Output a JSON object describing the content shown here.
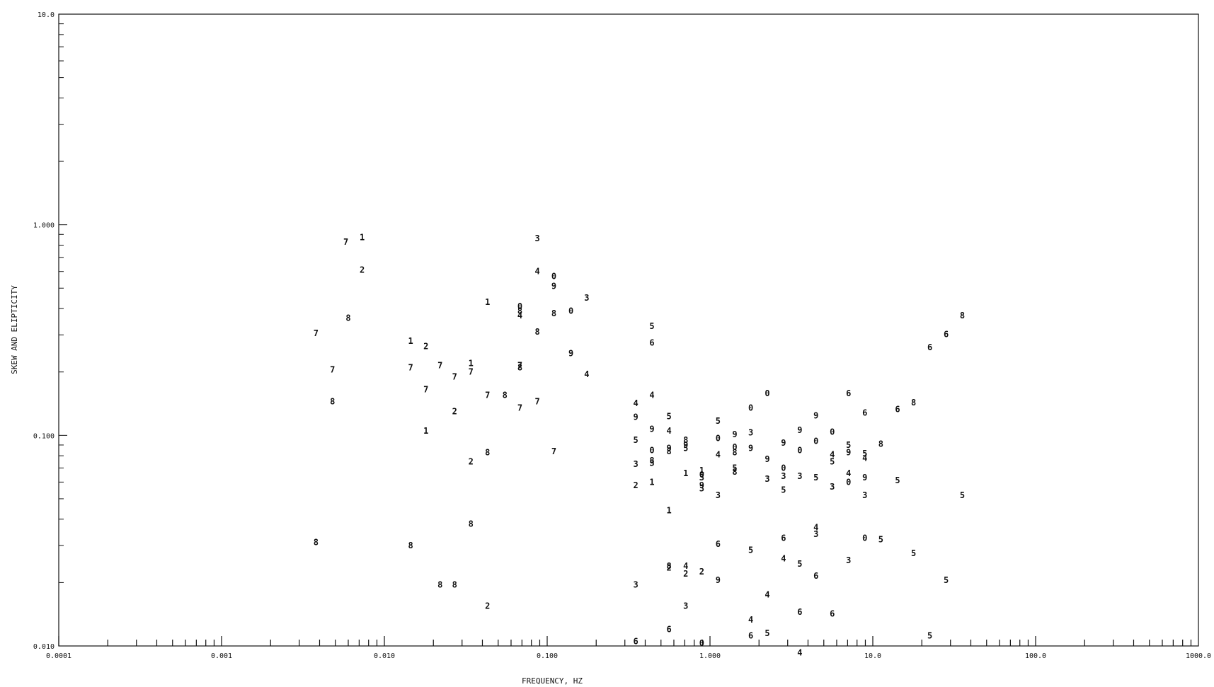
{
  "chart_data": {
    "type": "scatter",
    "title": "",
    "xlabel": "FREQUENCY, HZ",
    "ylabel": "SKEW AND ELIPTICITY",
    "x_scale": "log",
    "y_scale": "log",
    "xlim": [
      0.0001,
      1000.0
    ],
    "ylim": [
      0.01,
      10.0
    ],
    "x_tick_labels": [
      "0.0001",
      "0.001",
      "0.010",
      "0.100",
      "1.000",
      "10.0",
      "100.0",
      "1000.0"
    ],
    "y_tick_labels": [
      "0.010",
      "0.100",
      "1.000",
      "10.0"
    ],
    "grid": false,
    "legend": "none",
    "marker_style": "digit labels 0-9",
    "color": "#111111",
    "points": [
      {
        "x": 0.0038,
        "y": 0.305,
        "label": "7"
      },
      {
        "x": 0.0048,
        "y": 0.205,
        "label": "7"
      },
      {
        "x": 0.0058,
        "y": 0.83,
        "label": "7"
      },
      {
        "x": 0.0073,
        "y": 0.87,
        "label": "1"
      },
      {
        "x": 0.0073,
        "y": 0.61,
        "label": "2"
      },
      {
        "x": 0.006,
        "y": 0.36,
        "label": "8"
      },
      {
        "x": 0.0048,
        "y": 0.145,
        "label": "8"
      },
      {
        "x": 0.0038,
        "y": 0.031,
        "label": "8"
      },
      {
        "x": 0.0145,
        "y": 0.28,
        "label": "1"
      },
      {
        "x": 0.0145,
        "y": 0.21,
        "label": "7"
      },
      {
        "x": 0.018,
        "y": 0.265,
        "label": "2"
      },
      {
        "x": 0.022,
        "y": 0.215,
        "label": "7"
      },
      {
        "x": 0.018,
        "y": 0.165,
        "label": "7"
      },
      {
        "x": 0.018,
        "y": 0.105,
        "label": "1"
      },
      {
        "x": 0.027,
        "y": 0.19,
        "label": "7"
      },
      {
        "x": 0.027,
        "y": 0.13,
        "label": "2"
      },
      {
        "x": 0.034,
        "y": 0.22,
        "label": "1"
      },
      {
        "x": 0.034,
        "y": 0.2,
        "label": "7"
      },
      {
        "x": 0.034,
        "y": 0.075,
        "label": "2"
      },
      {
        "x": 0.034,
        "y": 0.038,
        "label": "8"
      },
      {
        "x": 0.0145,
        "y": 0.03,
        "label": "8"
      },
      {
        "x": 0.022,
        "y": 0.0195,
        "label": "8"
      },
      {
        "x": 0.027,
        "y": 0.0195,
        "label": "8"
      },
      {
        "x": 0.043,
        "y": 0.0155,
        "label": "2"
      },
      {
        "x": 0.043,
        "y": 0.155,
        "label": "7"
      },
      {
        "x": 0.043,
        "y": 0.083,
        "label": "8"
      },
      {
        "x": 0.043,
        "y": 0.43,
        "label": "1"
      },
      {
        "x": 0.055,
        "y": 0.155,
        "label": "8"
      },
      {
        "x": 0.068,
        "y": 0.41,
        "label": "0"
      },
      {
        "x": 0.068,
        "y": 0.39,
        "label": "8"
      },
      {
        "x": 0.068,
        "y": 0.37,
        "label": "4"
      },
      {
        "x": 0.068,
        "y": 0.215,
        "label": "7"
      },
      {
        "x": 0.068,
        "y": 0.21,
        "label": "8"
      },
      {
        "x": 0.068,
        "y": 0.135,
        "label": "7"
      },
      {
        "x": 0.087,
        "y": 0.86,
        "label": "3"
      },
      {
        "x": 0.087,
        "y": 0.6,
        "label": "4"
      },
      {
        "x": 0.087,
        "y": 0.31,
        "label": "8"
      },
      {
        "x": 0.087,
        "y": 0.145,
        "label": "7"
      },
      {
        "x": 0.11,
        "y": 0.57,
        "label": "0"
      },
      {
        "x": 0.11,
        "y": 0.51,
        "label": "9"
      },
      {
        "x": 0.11,
        "y": 0.38,
        "label": "8"
      },
      {
        "x": 0.11,
        "y": 0.084,
        "label": "7"
      },
      {
        "x": 0.14,
        "y": 0.39,
        "label": "0"
      },
      {
        "x": 0.14,
        "y": 0.245,
        "label": "9"
      },
      {
        "x": 0.175,
        "y": 0.45,
        "label": "3"
      },
      {
        "x": 0.175,
        "y": 0.195,
        "label": "4"
      },
      {
        "x": 0.35,
        "y": 0.142,
        "label": "4"
      },
      {
        "x": 0.35,
        "y": 0.122,
        "label": "9"
      },
      {
        "x": 0.35,
        "y": 0.095,
        "label": "5"
      },
      {
        "x": 0.35,
        "y": 0.073,
        "label": "3"
      },
      {
        "x": 0.35,
        "y": 0.058,
        "label": "2"
      },
      {
        "x": 0.35,
        "y": 0.0195,
        "label": "3"
      },
      {
        "x": 0.35,
        "y": 0.0105,
        "label": "6"
      },
      {
        "x": 0.44,
        "y": 0.33,
        "label": "5"
      },
      {
        "x": 0.44,
        "y": 0.275,
        "label": "6"
      },
      {
        "x": 0.44,
        "y": 0.155,
        "label": "4"
      },
      {
        "x": 0.44,
        "y": 0.107,
        "label": "9"
      },
      {
        "x": 0.44,
        "y": 0.085,
        "label": "0"
      },
      {
        "x": 0.44,
        "y": 0.076,
        "label": "8"
      },
      {
        "x": 0.44,
        "y": 0.074,
        "label": "3"
      },
      {
        "x": 0.44,
        "y": 0.06,
        "label": "1"
      },
      {
        "x": 0.56,
        "y": 0.123,
        "label": "5"
      },
      {
        "x": 0.56,
        "y": 0.105,
        "label": "4"
      },
      {
        "x": 0.56,
        "y": 0.087,
        "label": "9"
      },
      {
        "x": 0.56,
        "y": 0.084,
        "label": "8"
      },
      {
        "x": 0.56,
        "y": 0.044,
        "label": "1"
      },
      {
        "x": 0.56,
        "y": 0.0235,
        "label": "2"
      },
      {
        "x": 0.56,
        "y": 0.024,
        "label": "8"
      },
      {
        "x": 0.56,
        "y": 0.012,
        "label": "6"
      },
      {
        "x": 0.71,
        "y": 0.095,
        "label": "8"
      },
      {
        "x": 0.71,
        "y": 0.09,
        "label": "9"
      },
      {
        "x": 0.71,
        "y": 0.087,
        "label": "5"
      },
      {
        "x": 0.71,
        "y": 0.066,
        "label": "1"
      },
      {
        "x": 0.71,
        "y": 0.024,
        "label": "4"
      },
      {
        "x": 0.71,
        "y": 0.022,
        "label": "2"
      },
      {
        "x": 0.71,
        "y": 0.0155,
        "label": "3"
      },
      {
        "x": 0.89,
        "y": 0.068,
        "label": "1"
      },
      {
        "x": 0.89,
        "y": 0.065,
        "label": "0"
      },
      {
        "x": 0.89,
        "y": 0.063,
        "label": "3"
      },
      {
        "x": 0.89,
        "y": 0.058,
        "label": "9"
      },
      {
        "x": 0.89,
        "y": 0.056,
        "label": "3"
      },
      {
        "x": 0.89,
        "y": 0.0225,
        "label": "2"
      },
      {
        "x": 0.89,
        "y": 0.0103,
        "label": "0"
      },
      {
        "x": 1.12,
        "y": 0.117,
        "label": "5"
      },
      {
        "x": 1.12,
        "y": 0.097,
        "label": "0"
      },
      {
        "x": 1.12,
        "y": 0.081,
        "label": "4"
      },
      {
        "x": 1.12,
        "y": 0.052,
        "label": "3"
      },
      {
        "x": 1.12,
        "y": 0.0305,
        "label": "6"
      },
      {
        "x": 1.12,
        "y": 0.0205,
        "label": "9"
      },
      {
        "x": 1.42,
        "y": 0.101,
        "label": "9"
      },
      {
        "x": 1.42,
        "y": 0.088,
        "label": "0"
      },
      {
        "x": 1.42,
        "y": 0.083,
        "label": "8"
      },
      {
        "x": 1.42,
        "y": 0.07,
        "label": "5"
      },
      {
        "x": 1.42,
        "y": 0.067,
        "label": "8"
      },
      {
        "x": 1.78,
        "y": 0.135,
        "label": "0"
      },
      {
        "x": 1.78,
        "y": 0.103,
        "label": "3"
      },
      {
        "x": 1.78,
        "y": 0.087,
        "label": "9"
      },
      {
        "x": 1.78,
        "y": 0.0285,
        "label": "5"
      },
      {
        "x": 1.78,
        "y": 0.0133,
        "label": "4"
      },
      {
        "x": 1.78,
        "y": 0.0112,
        "label": "6"
      },
      {
        "x": 2.25,
        "y": 0.158,
        "label": "0"
      },
      {
        "x": 2.25,
        "y": 0.077,
        "label": "9"
      },
      {
        "x": 2.25,
        "y": 0.062,
        "label": "3"
      },
      {
        "x": 2.25,
        "y": 0.0175,
        "label": "4"
      },
      {
        "x": 2.25,
        "y": 0.0115,
        "label": "5"
      },
      {
        "x": 2.83,
        "y": 0.092,
        "label": "9"
      },
      {
        "x": 2.83,
        "y": 0.07,
        "label": "0"
      },
      {
        "x": 2.83,
        "y": 0.064,
        "label": "3"
      },
      {
        "x": 2.83,
        "y": 0.055,
        "label": "5"
      },
      {
        "x": 2.83,
        "y": 0.0325,
        "label": "6"
      },
      {
        "x": 2.83,
        "y": 0.026,
        "label": "4"
      },
      {
        "x": 3.56,
        "y": 0.106,
        "label": "9"
      },
      {
        "x": 3.56,
        "y": 0.085,
        "label": "0"
      },
      {
        "x": 3.56,
        "y": 0.064,
        "label": "3"
      },
      {
        "x": 3.56,
        "y": 0.0245,
        "label": "5"
      },
      {
        "x": 3.56,
        "y": 0.0145,
        "label": "6"
      },
      {
        "x": 3.56,
        "y": 0.0093,
        "label": "4"
      },
      {
        "x": 4.48,
        "y": 0.124,
        "label": "9"
      },
      {
        "x": 4.48,
        "y": 0.094,
        "label": "0"
      },
      {
        "x": 4.48,
        "y": 0.063,
        "label": "5"
      },
      {
        "x": 4.48,
        "y": 0.0365,
        "label": "4"
      },
      {
        "x": 4.48,
        "y": 0.034,
        "label": "3"
      },
      {
        "x": 4.48,
        "y": 0.0215,
        "label": "6"
      },
      {
        "x": 5.64,
        "y": 0.104,
        "label": "0"
      },
      {
        "x": 5.64,
        "y": 0.081,
        "label": "4"
      },
      {
        "x": 5.64,
        "y": 0.075,
        "label": "5"
      },
      {
        "x": 5.64,
        "y": 0.057,
        "label": "3"
      },
      {
        "x": 5.64,
        "y": 0.0142,
        "label": "6"
      },
      {
        "x": 7.1,
        "y": 0.158,
        "label": "6"
      },
      {
        "x": 7.1,
        "y": 0.09,
        "label": "5"
      },
      {
        "x": 7.1,
        "y": 0.083,
        "label": "9"
      },
      {
        "x": 7.1,
        "y": 0.066,
        "label": "4"
      },
      {
        "x": 7.1,
        "y": 0.06,
        "label": "0"
      },
      {
        "x": 7.1,
        "y": 0.0255,
        "label": "3"
      },
      {
        "x": 8.93,
        "y": 0.128,
        "label": "6"
      },
      {
        "x": 8.93,
        "y": 0.082,
        "label": "5"
      },
      {
        "x": 8.93,
        "y": 0.078,
        "label": "4"
      },
      {
        "x": 8.93,
        "y": 0.063,
        "label": "9"
      },
      {
        "x": 8.93,
        "y": 0.052,
        "label": "3"
      },
      {
        "x": 8.93,
        "y": 0.0325,
        "label": "0"
      },
      {
        "x": 11.2,
        "y": 0.091,
        "label": "8"
      },
      {
        "x": 11.2,
        "y": 0.032,
        "label": "5"
      },
      {
        "x": 14.2,
        "y": 0.133,
        "label": "6"
      },
      {
        "x": 14.2,
        "y": 0.061,
        "label": "5"
      },
      {
        "x": 17.8,
        "y": 0.143,
        "label": "8"
      },
      {
        "x": 17.8,
        "y": 0.0275,
        "label": "5"
      },
      {
        "x": 22.4,
        "y": 0.262,
        "label": "6"
      },
      {
        "x": 22.4,
        "y": 0.0112,
        "label": "5"
      },
      {
        "x": 28.2,
        "y": 0.302,
        "label": "6"
      },
      {
        "x": 28.2,
        "y": 0.0205,
        "label": "5"
      },
      {
        "x": 35.5,
        "y": 0.37,
        "label": "8"
      },
      {
        "x": 35.5,
        "y": 0.052,
        "label": "5"
      }
    ]
  }
}
